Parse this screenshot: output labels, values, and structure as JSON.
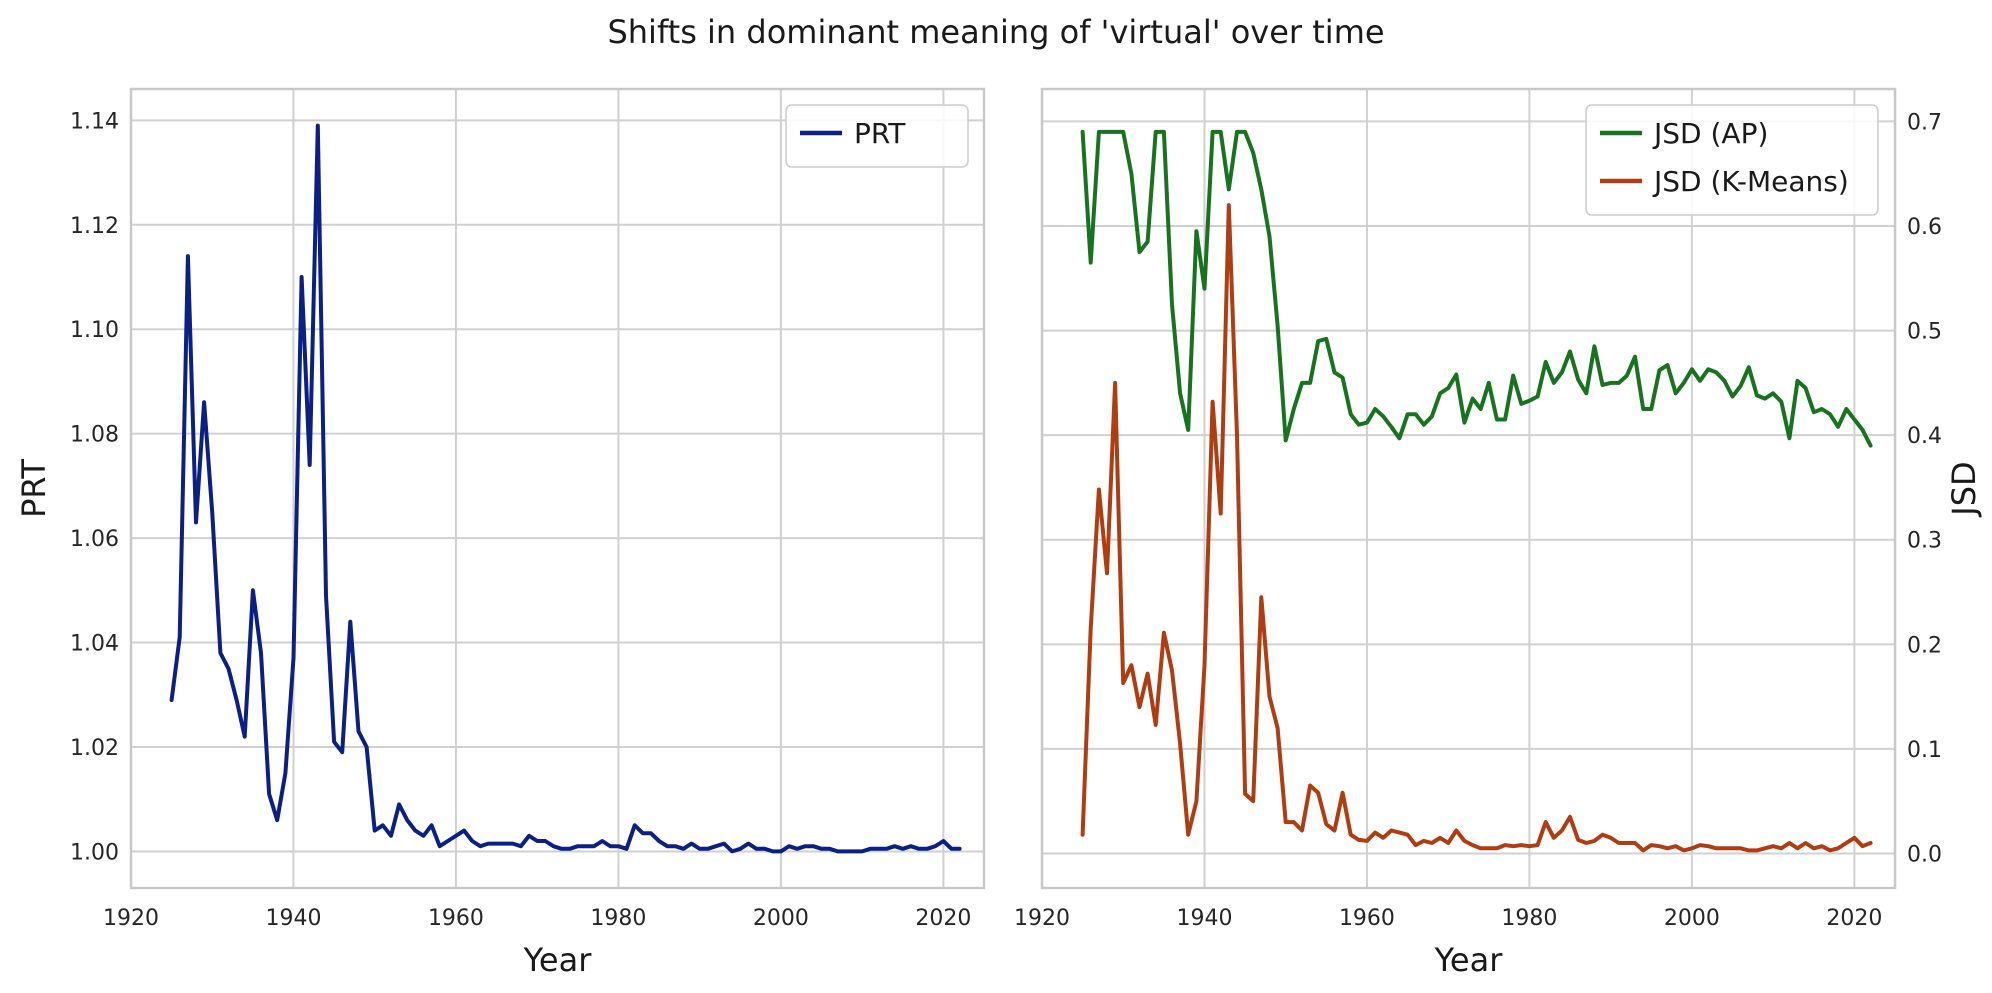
{
  "figure": {
    "title": "Shifts in dominant meaning of 'virtual' over time"
  },
  "colors": {
    "prt": "#0a2085",
    "jsd_ap": "#18731f",
    "jsd_km": "#b03d12",
    "grid": "#d0d0d0",
    "spine": "#c8c8c8"
  },
  "chart_data": [
    {
      "type": "line",
      "xlabel": "Year",
      "ylabel": "PRT",
      "xlim": [
        1920,
        2025
      ],
      "ylim": [
        0.993,
        1.146
      ],
      "xticks": [
        1920,
        1940,
        1960,
        1980,
        2000,
        2020
      ],
      "yticks": [
        1.0,
        1.02,
        1.04,
        1.06,
        1.08,
        1.1,
        1.12,
        1.14
      ],
      "yticklabels": [
        "1.00",
        "1.02",
        "1.04",
        "1.06",
        "1.08",
        "1.10",
        "1.12",
        "1.14"
      ],
      "grid": true,
      "legend_position": "top-right",
      "x": [
        1925,
        1926,
        1927,
        1928,
        1929,
        1930,
        1931,
        1932,
        1933,
        1934,
        1935,
        1936,
        1937,
        1938,
        1939,
        1940,
        1941,
        1942,
        1943,
        1944,
        1945,
        1946,
        1947,
        1948,
        1949,
        1950,
        1951,
        1952,
        1953,
        1954,
        1955,
        1956,
        1957,
        1958,
        1959,
        1960,
        1961,
        1962,
        1963,
        1964,
        1965,
        1966,
        1967,
        1968,
        1969,
        1970,
        1971,
        1972,
        1973,
        1974,
        1975,
        1976,
        1977,
        1978,
        1979,
        1980,
        1981,
        1982,
        1983,
        1984,
        1985,
        1986,
        1987,
        1988,
        1989,
        1990,
        1991,
        1992,
        1993,
        1994,
        1995,
        1996,
        1997,
        1998,
        1999,
        2000,
        2001,
        2002,
        2003,
        2004,
        2005,
        2006,
        2007,
        2008,
        2009,
        2010,
        2011,
        2012,
        2013,
        2014,
        2015,
        2016,
        2017,
        2018,
        2019,
        2020,
        2021,
        2022
      ],
      "series": [
        {
          "name": "PRT",
          "values": [
            1.029,
            1.041,
            1.114,
            1.063,
            1.086,
            1.065,
            1.038,
            1.035,
            1.029,
            1.022,
            1.05,
            1.038,
            1.011,
            1.006,
            1.015,
            1.037,
            1.11,
            1.074,
            1.139,
            1.049,
            1.021,
            1.019,
            1.044,
            1.023,
            1.02,
            1.004,
            1.005,
            1.003,
            1.009,
            1.006,
            1.004,
            1.003,
            1.005,
            1.001,
            1.002,
            1.003,
            1.004,
            1.002,
            1.001,
            1.0015,
            1.0015,
            1.0015,
            1.0015,
            1.001,
            1.003,
            1.002,
            1.002,
            1.001,
            1.0005,
            1.0005,
            1.001,
            1.001,
            1.001,
            1.002,
            1.001,
            1.001,
            1.0005,
            1.005,
            1.0035,
            1.0035,
            1.002,
            1.001,
            1.001,
            1.0005,
            1.0015,
            1.0005,
            1.0005,
            1.001,
            1.0015,
            1.0,
            1.0005,
            1.0015,
            1.0005,
            1.0005,
            1.0,
            1.0,
            1.001,
            1.0005,
            1.001,
            1.001,
            1.0005,
            1.0005,
            1.0,
            1.0,
            1.0,
            1.0,
            1.0005,
            1.0005,
            1.0005,
            1.001,
            1.0005,
            1.001,
            1.0005,
            1.0005,
            1.001,
            1.002,
            1.0005,
            1.0005
          ]
        }
      ]
    },
    {
      "type": "line",
      "xlabel": "Year",
      "ylabel": "JSD",
      "xlim": [
        1920,
        2025
      ],
      "ylim": [
        -0.033,
        0.731
      ],
      "xticks": [
        1920,
        1940,
        1960,
        1980,
        2000,
        2020
      ],
      "yticks": [
        0.0,
        0.1,
        0.2,
        0.3,
        0.4,
        0.5,
        0.6,
        0.7
      ],
      "yticklabels": [
        "0.0",
        "0.1",
        "0.2",
        "0.3",
        "0.4",
        "0.5",
        "0.6",
        "0.7"
      ],
      "grid": true,
      "legend_position": "top-right",
      "x": [
        1925,
        1926,
        1927,
        1928,
        1929,
        1930,
        1931,
        1932,
        1933,
        1934,
        1935,
        1936,
        1937,
        1938,
        1939,
        1940,
        1941,
        1942,
        1943,
        1944,
        1945,
        1946,
        1947,
        1948,
        1949,
        1950,
        1951,
        1952,
        1953,
        1954,
        1955,
        1956,
        1957,
        1958,
        1959,
        1960,
        1961,
        1962,
        1963,
        1964,
        1965,
        1966,
        1967,
        1968,
        1969,
        1970,
        1971,
        1972,
        1973,
        1974,
        1975,
        1976,
        1977,
        1978,
        1979,
        1980,
        1981,
        1982,
        1983,
        1984,
        1985,
        1986,
        1987,
        1988,
        1989,
        1990,
        1991,
        1992,
        1993,
        1994,
        1995,
        1996,
        1997,
        1998,
        1999,
        2000,
        2001,
        2002,
        2003,
        2004,
        2005,
        2006,
        2007,
        2008,
        2009,
        2010,
        2011,
        2012,
        2013,
        2014,
        2015,
        2016,
        2017,
        2018,
        2019,
        2020,
        2021,
        2022
      ],
      "series": [
        {
          "name": "JSD (AP)",
          "values": [
            0.69,
            0.565,
            0.69,
            0.69,
            0.69,
            0.69,
            0.65,
            0.575,
            0.585,
            0.69,
            0.69,
            0.525,
            0.44,
            0.405,
            0.595,
            0.54,
            0.69,
            0.69,
            0.635,
            0.69,
            0.69,
            0.67,
            0.635,
            0.59,
            0.505,
            0.395,
            0.425,
            0.45,
            0.45,
            0.49,
            0.492,
            0.46,
            0.455,
            0.42,
            0.41,
            0.412,
            0.425,
            0.418,
            0.408,
            0.397,
            0.42,
            0.42,
            0.41,
            0.418,
            0.44,
            0.445,
            0.458,
            0.412,
            0.435,
            0.425,
            0.45,
            0.415,
            0.415,
            0.457,
            0.43,
            0.433,
            0.437,
            0.47,
            0.45,
            0.46,
            0.48,
            0.453,
            0.44,
            0.485,
            0.448,
            0.45,
            0.45,
            0.457,
            0.475,
            0.425,
            0.425,
            0.462,
            0.467,
            0.44,
            0.45,
            0.463,
            0.452,
            0.463,
            0.46,
            0.452,
            0.437,
            0.447,
            0.465,
            0.438,
            0.435,
            0.44,
            0.432,
            0.397,
            0.452,
            0.445,
            0.422,
            0.425,
            0.42,
            0.408,
            0.425,
            0.415,
            0.405,
            0.39
          ]
        },
        {
          "name": "JSD (K-Means)",
          "values": [
            0.018,
            0.215,
            0.348,
            0.268,
            0.45,
            0.163,
            0.18,
            0.14,
            0.172,
            0.123,
            0.211,
            0.175,
            0.105,
            0.018,
            0.05,
            0.18,
            0.432,
            0.325,
            0.62,
            0.4,
            0.057,
            0.05,
            0.245,
            0.15,
            0.12,
            0.03,
            0.03,
            0.022,
            0.065,
            0.058,
            0.028,
            0.022,
            0.058,
            0.018,
            0.013,
            0.012,
            0.02,
            0.015,
            0.022,
            0.02,
            0.018,
            0.008,
            0.012,
            0.01,
            0.015,
            0.01,
            0.022,
            0.012,
            0.008,
            0.005,
            0.005,
            0.005,
            0.008,
            0.007,
            0.008,
            0.007,
            0.008,
            0.03,
            0.015,
            0.022,
            0.035,
            0.013,
            0.01,
            0.012,
            0.018,
            0.015,
            0.01,
            0.01,
            0.01,
            0.003,
            0.008,
            0.007,
            0.005,
            0.007,
            0.003,
            0.005,
            0.008,
            0.007,
            0.005,
            0.005,
            0.005,
            0.005,
            0.003,
            0.003,
            0.005,
            0.007,
            0.005,
            0.01,
            0.005,
            0.01,
            0.005,
            0.007,
            0.003,
            0.005,
            0.01,
            0.015,
            0.007,
            0.01
          ]
        }
      ]
    }
  ]
}
